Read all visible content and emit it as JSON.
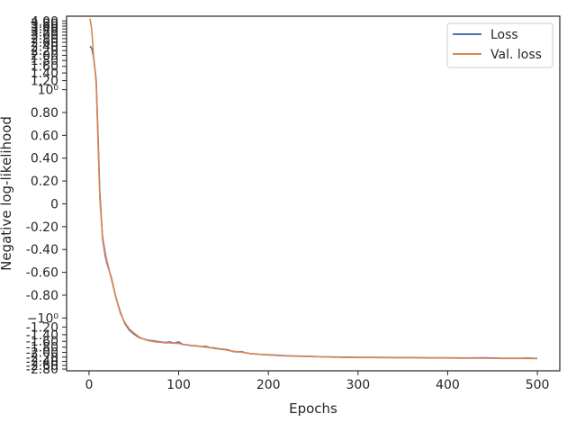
{
  "chart_data": {
    "type": "line",
    "title": "",
    "xlabel": "Epochs",
    "ylabel": "Negative log-likelihood",
    "xlim": [
      -25,
      525
    ],
    "ylim": [
      -2.9,
      4.4
    ],
    "y_scale": "symlog",
    "x_ticks": [
      0,
      100,
      200,
      300,
      400,
      500
    ],
    "x_tick_labels": [
      "0",
      "100",
      "200",
      "300",
      "400",
      "500"
    ],
    "y_ticks": [
      {
        "value": 4.0,
        "label": "4.00"
      },
      {
        "value": 3.8,
        "label": "3.80"
      },
      {
        "value": 3.6,
        "label": "3.60"
      },
      {
        "value": 3.4,
        "label": "3.40"
      },
      {
        "value": 3.2,
        "label": "3.20"
      },
      {
        "value": 3.0,
        "label": "3.00"
      },
      {
        "value": 2.8,
        "label": "2.80"
      },
      {
        "value": 2.6,
        "label": "2.60"
      },
      {
        "value": 2.4,
        "label": "2.40"
      },
      {
        "value": 2.2,
        "label": "2.20"
      },
      {
        "value": 2.0,
        "label": "2.00"
      },
      {
        "value": 1.8,
        "label": "1.80"
      },
      {
        "value": 1.6,
        "label": "1.60"
      },
      {
        "value": 1.4,
        "label": "1.40"
      },
      {
        "value": 1.2,
        "label": "1.20"
      },
      {
        "value": 1.0,
        "label": "10⁰"
      },
      {
        "value": 0.8,
        "label": "0.80"
      },
      {
        "value": 0.6,
        "label": "0.60"
      },
      {
        "value": 0.4,
        "label": "0.40"
      },
      {
        "value": 0.2,
        "label": "0.20"
      },
      {
        "value": 0.0,
        "label": "0"
      },
      {
        "value": -0.2,
        "label": "-0.20"
      },
      {
        "value": -0.4,
        "label": "-0.40"
      },
      {
        "value": -0.6,
        "label": "-0.60"
      },
      {
        "value": -0.8,
        "label": "-0.80"
      },
      {
        "value": -1.0,
        "label": "−10⁰"
      },
      {
        "value": -1.2,
        "label": "-1.20"
      },
      {
        "value": -1.4,
        "label": "-1.40"
      },
      {
        "value": -1.6,
        "label": "-1.60"
      },
      {
        "value": -1.8,
        "label": "-1.80"
      },
      {
        "value": -2.0,
        "label": "-2.00"
      },
      {
        "value": -2.2,
        "label": "-2.20"
      },
      {
        "value": -2.4,
        "label": "-2.40"
      },
      {
        "value": -2.6,
        "label": "-2.60"
      },
      {
        "value": -2.8,
        "label": "-2.80"
      }
    ],
    "grid": false,
    "legend_position": "top-right",
    "series": [
      {
        "name": "Loss",
        "color": "#4c72b0",
        "x": [
          1,
          3,
          5,
          8,
          10,
          12,
          15,
          18,
          20,
          25,
          30,
          35,
          40,
          45,
          50,
          55,
          60,
          65,
          70,
          75,
          80,
          85,
          90,
          95,
          100,
          105,
          110,
          115,
          120,
          125,
          130,
          135,
          140,
          145,
          150,
          155,
          160,
          165,
          170,
          175,
          180,
          190,
          200,
          210,
          220,
          230,
          240,
          250,
          260,
          270,
          280,
          300,
          320,
          340,
          360,
          380,
          400,
          420,
          440,
          460,
          480,
          490,
          500
        ],
        "y": [
          2.4,
          2.3,
          1.95,
          1.2,
          0.6,
          0.1,
          -0.3,
          -0.45,
          -0.52,
          -0.65,
          -0.82,
          -0.95,
          -1.12,
          -1.28,
          -1.38,
          -1.47,
          -1.52,
          -1.56,
          -1.58,
          -1.6,
          -1.62,
          -1.64,
          -1.62,
          -1.66,
          -1.62,
          -1.71,
          -1.72,
          -1.75,
          -1.76,
          -1.78,
          -1.77,
          -1.82,
          -1.83,
          -1.86,
          -1.88,
          -1.9,
          -1.96,
          -1.98,
          -1.97,
          -2.02,
          -2.05,
          -2.08,
          -2.1,
          -2.12,
          -2.14,
          -2.15,
          -2.16,
          -2.17,
          -2.19,
          -2.19,
          -2.2,
          -2.21,
          -2.21,
          -2.22,
          -2.22,
          -2.23,
          -2.23,
          -2.24,
          -2.23,
          -2.25,
          -2.25,
          -2.24,
          -2.26
        ]
      },
      {
        "name": "Val. loss",
        "color": "#dd8452",
        "x": [
          1,
          3,
          5,
          8,
          10,
          12,
          15,
          18,
          20,
          25,
          30,
          35,
          40,
          45,
          50,
          55,
          60,
          65,
          70,
          75,
          80,
          85,
          90,
          95,
          100,
          105,
          110,
          115,
          120,
          125,
          130,
          135,
          140,
          145,
          150,
          155,
          160,
          165,
          170,
          175,
          180,
          190,
          200,
          210,
          220,
          230,
          240,
          250,
          260,
          270,
          280,
          300,
          320,
          340,
          360,
          380,
          400,
          420,
          440,
          460,
          480,
          490,
          500
        ],
        "y": [
          4.2,
          3.4,
          2.0,
          1.15,
          0.55,
          0.05,
          -0.28,
          -0.42,
          -0.5,
          -0.66,
          -0.82,
          -0.96,
          -1.1,
          -1.25,
          -1.35,
          -1.45,
          -1.52,
          -1.57,
          -1.6,
          -1.62,
          -1.63,
          -1.65,
          -1.65,
          -1.66,
          -1.67,
          -1.7,
          -1.73,
          -1.74,
          -1.75,
          -1.78,
          -1.8,
          -1.82,
          -1.85,
          -1.87,
          -1.89,
          -1.92,
          -1.95,
          -1.97,
          -1.99,
          -2.02,
          -2.05,
          -2.08,
          -2.11,
          -2.13,
          -2.15,
          -2.16,
          -2.17,
          -2.18,
          -2.19,
          -2.2,
          -2.21,
          -2.22,
          -2.22,
          -2.23,
          -2.23,
          -2.24,
          -2.24,
          -2.25,
          -2.25,
          -2.26,
          -2.26,
          -2.26,
          -2.27
        ]
      }
    ]
  }
}
